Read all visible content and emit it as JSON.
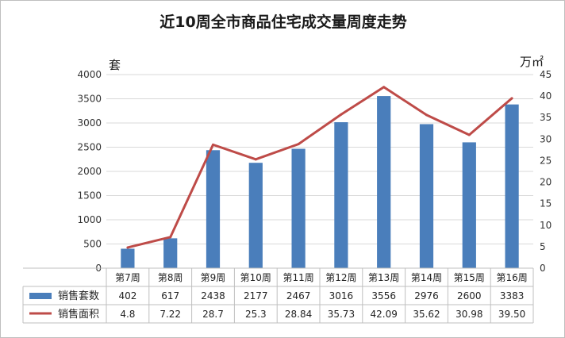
{
  "chart_data": {
    "type": "bar",
    "title": "近10周全市商品住宅成交量周度走势",
    "y_left_unit": "套",
    "y_right_unit": "万㎡",
    "categories": [
      "第7周",
      "第8周",
      "第9周",
      "第10周",
      "第11周",
      "第12周",
      "第13周",
      "第14周",
      "第15周",
      "第16周"
    ],
    "ylim_left": [
      0,
      4000
    ],
    "ylim_right": [
      0,
      45
    ],
    "yticks_left": [
      "0",
      "500",
      "1000",
      "1500",
      "2000",
      "2500",
      "3000",
      "3500",
      "4000"
    ],
    "yticks_right": [
      "0",
      "5",
      "10",
      "15",
      "20",
      "25",
      "30",
      "35",
      "40",
      "45"
    ],
    "grid": true,
    "legend": "bottom-left table",
    "series": [
      {
        "name": "销售套数",
        "type": "bar",
        "axis": "left",
        "color": "#4a7ebb",
        "values": [
          402,
          617,
          2438,
          2177,
          2467,
          3016,
          3556,
          2976,
          2600,
          3383
        ],
        "labels": [
          "402",
          "617",
          "2438",
          "2177",
          "2467",
          "3016",
          "3556",
          "2976",
          "2600",
          "3383"
        ]
      },
      {
        "name": "销售面积",
        "type": "line",
        "axis": "right",
        "color": "#be4b48",
        "values": [
          4.8,
          7.22,
          28.7,
          25.3,
          28.84,
          35.73,
          42.09,
          35.62,
          30.98,
          39.5
        ],
        "labels": [
          "4.8",
          "7.22",
          "28.7",
          "25.3",
          "28.84",
          "35.73",
          "42.09",
          "35.62",
          "30.98",
          "39.50"
        ]
      }
    ]
  }
}
